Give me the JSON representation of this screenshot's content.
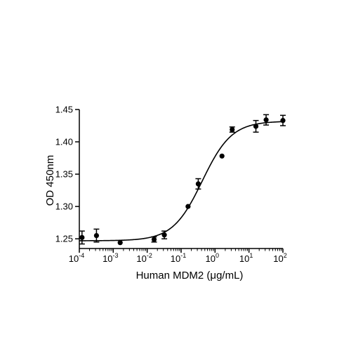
{
  "chart_data": {
    "type": "scatter",
    "title": "",
    "xlabel": "Human MDM2 (μg/mL)",
    "ylabel": "OD 450nm",
    "x_scale": "log",
    "xlim": [
      0.0001,
      100
    ],
    "ylim": [
      1.235,
      1.45
    ],
    "x_ticks": [
      {
        "base": "10",
        "exp": "-4"
      },
      {
        "base": "10",
        "exp": "-3"
      },
      {
        "base": "10",
        "exp": "-2"
      },
      {
        "base": "10",
        "exp": "-1"
      },
      {
        "base": "10",
        "exp": "0"
      },
      {
        "base": "10",
        "exp": "1"
      },
      {
        "base": "10",
        "exp": "2"
      }
    ],
    "y_ticks": [
      "1.25",
      "1.30",
      "1.35",
      "1.40",
      "1.45"
    ],
    "grid": false,
    "legend": "none",
    "marker_color": "#000000",
    "points": [
      {
        "x": 0.00012,
        "y": 1.252,
        "err": 0.01
      },
      {
        "x": 0.00032,
        "y": 1.255,
        "err": 0.01
      },
      {
        "x": 0.0016,
        "y": 1.244,
        "err": 0
      },
      {
        "x": 0.016,
        "y": 1.249,
        "err": 0.004
      },
      {
        "x": 0.032,
        "y": 1.256,
        "err": 0.006
      },
      {
        "x": 0.16,
        "y": 1.3,
        "err": 0
      },
      {
        "x": 0.32,
        "y": 1.335,
        "err": 0.008
      },
      {
        "x": 1.6,
        "y": 1.378,
        "err": 0
      },
      {
        "x": 3.2,
        "y": 1.419,
        "err": 0.004
      },
      {
        "x": 16,
        "y": 1.424,
        "err": 0.009
      },
      {
        "x": 32,
        "y": 1.434,
        "err": 0.008
      },
      {
        "x": 100,
        "y": 1.433,
        "err": 0.008
      }
    ],
    "fit_curve": {
      "bottom": 1.247,
      "top": 1.432,
      "ec50": 0.42,
      "hill": 1.0
    }
  }
}
